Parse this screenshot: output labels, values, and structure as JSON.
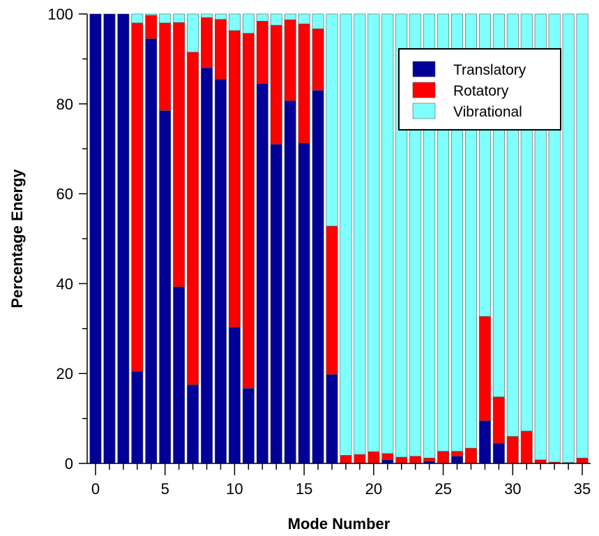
{
  "chart_data": {
    "type": "bar",
    "stacked": true,
    "xlabel": "Mode Number",
    "ylabel": "Percentage Energy",
    "ylim": [
      0,
      100
    ],
    "xlim": [
      -0.6,
      35.6
    ],
    "x_ticks": [
      0,
      5,
      10,
      15,
      20,
      25,
      30,
      35
    ],
    "y_ticks": [
      0,
      20,
      40,
      60,
      80,
      100
    ],
    "legend_position": "top-right",
    "grid": false,
    "x": [
      0,
      1,
      2,
      3,
      4,
      5,
      6,
      7,
      8,
      9,
      10,
      11,
      12,
      13,
      14,
      15,
      16,
      17,
      18,
      19,
      20,
      21,
      22,
      23,
      24,
      25,
      26,
      27,
      28,
      29,
      30,
      31,
      32,
      33,
      34,
      35
    ],
    "series": [
      {
        "name": "Translatory",
        "color": "#000099",
        "values": [
          100,
          100,
          100,
          20.5,
          94.5,
          78.5,
          39.3,
          17.5,
          88,
          85.5,
          30.3,
          16.7,
          84.5,
          71,
          80.7,
          71.3,
          83,
          19.8,
          0,
          0,
          0,
          0.8,
          0,
          0,
          0.5,
          0,
          1.6,
          0,
          9.5,
          4.5,
          0,
          0,
          0,
          0,
          0,
          0
        ]
      },
      {
        "name": "Rotatory",
        "color": "#ff0000",
        "values": [
          0,
          0,
          0,
          77.5,
          5.2,
          19.5,
          58.8,
          74,
          11.2,
          13.3,
          66,
          79,
          13.9,
          26.5,
          18,
          26.5,
          13.7,
          33,
          1.8,
          2,
          2.6,
          1.4,
          1.4,
          1.6,
          0.7,
          2.7,
          1.1,
          3.4,
          23.2,
          10.3,
          6,
          7.2,
          0.8,
          0.3,
          0.2,
          1.2
        ]
      },
      {
        "name": "Vibrational",
        "color": "#80ffff",
        "values": [
          0,
          0,
          0,
          2,
          0.3,
          2,
          1.9,
          8.5,
          0.8,
          1.2,
          3.7,
          4.3,
          1.6,
          2.5,
          1.3,
          2.2,
          3.3,
          47.2,
          98.2,
          98,
          97.4,
          97.8,
          98.6,
          98.4,
          98.8,
          97.3,
          97.3,
          96.6,
          67.3,
          85.2,
          94,
          92.8,
          99.2,
          99.7,
          99.8,
          98.8
        ]
      }
    ]
  }
}
